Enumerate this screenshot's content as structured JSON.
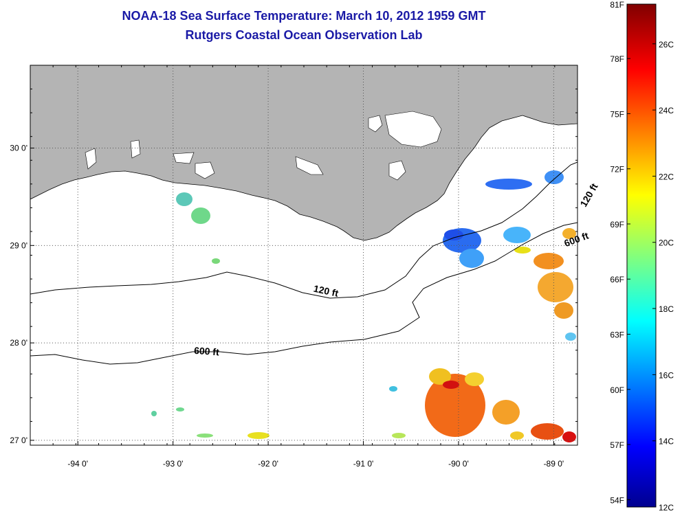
{
  "title": {
    "line1": "NOAA-18 Sea Surface Temperature:  March 10, 2012 1959 GMT",
    "line2": "Rutgers Coastal Ocean Observation Lab"
  },
  "map": {
    "lon_range": [
      -94.5,
      -88.75
    ],
    "lat_range": [
      26.95,
      30.85
    ],
    "lon_ticks": [
      {
        "value": -94,
        "label": "-94 0'"
      },
      {
        "value": -93,
        "label": "-93 0'"
      },
      {
        "value": -92,
        "label": "-92 0'"
      },
      {
        "value": -91,
        "label": "-91 0'"
      },
      {
        "value": -90,
        "label": "-90 0'"
      },
      {
        "value": -89,
        "label": "-89 0'"
      }
    ],
    "lat_ticks": [
      {
        "value": 30,
        "label": "30 0'"
      },
      {
        "value": 29,
        "label": "29 0'"
      },
      {
        "value": 28,
        "label": "28 0'"
      },
      {
        "value": 27,
        "label": "27 0'"
      }
    ],
    "grid": "dotted",
    "land_color": "#b4b4b4",
    "contours": [
      {
        "label": "120 ft",
        "label_lon": -91.4,
        "label_lat": 28.5
      },
      {
        "label": "600 ft",
        "label_lon": -92.65,
        "label_lat": 27.88
      },
      {
        "label": "120 ft",
        "label_lon": -88.6,
        "label_lat": 29.5
      },
      {
        "label": "600 ft",
        "label_lon": -88.75,
        "label_lat": 29.03
      }
    ]
  },
  "colorbar": {
    "min_c": 12,
    "max_c": 27.2,
    "fahrenheit_ticks": [
      {
        "value": 81,
        "label": "81F"
      },
      {
        "value": 78,
        "label": "78F"
      },
      {
        "value": 75,
        "label": "75F"
      },
      {
        "value": 72,
        "label": "72F"
      },
      {
        "value": 69,
        "label": "69F"
      },
      {
        "value": 66,
        "label": "66F"
      },
      {
        "value": 63,
        "label": "63F"
      },
      {
        "value": 60,
        "label": "60F"
      },
      {
        "value": 57,
        "label": "57F"
      },
      {
        "value": 54,
        "label": "54F"
      }
    ],
    "celsius_ticks": [
      {
        "value": 26,
        "label": "26C"
      },
      {
        "value": 24,
        "label": "24C"
      },
      {
        "value": 22,
        "label": "22C"
      },
      {
        "value": 20,
        "label": "20C"
      },
      {
        "value": 18,
        "label": "18C"
      },
      {
        "value": 16,
        "label": "16C"
      },
      {
        "value": 14,
        "label": "14C"
      },
      {
        "value": 12,
        "label": "12C"
      }
    ]
  }
}
